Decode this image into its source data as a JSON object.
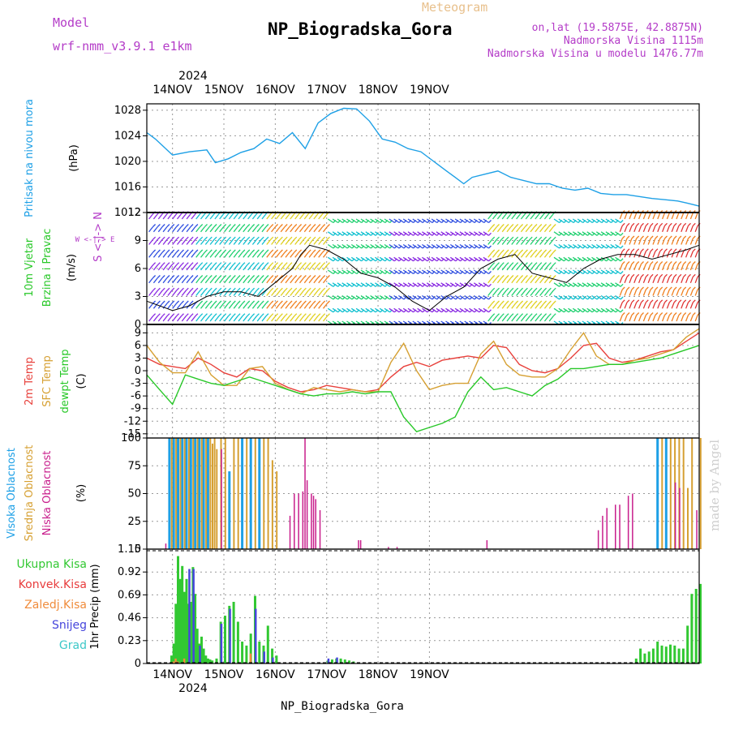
{
  "header": {
    "model_label": "Model",
    "model_value": "wrf-nmm_v3.9.1  e1km",
    "title": "NP_Biogradska_Gora",
    "subtitle": "Meteogram",
    "lonlat": "on,lat (19.5875E, 42.8875N)",
    "elevation": "Nadmorska Visina 1115m",
    "model_elevation": "Nadmorska Visina u modelu 1476.77m",
    "year_top": "2024",
    "year_bottom": "2024",
    "footer": "NP_Biogradska_Gora",
    "watermark": "made by Angel"
  },
  "colors": {
    "pressure": "#1ea0e6",
    "temp2m": "#e8413c",
    "sfc": "#d6a032",
    "dewpt": "#28c828",
    "high_cloud": "#1ea0e6",
    "mid_cloud": "#d6a032",
    "low_cloud": "#c81e8c",
    "rain_total": "#32c832",
    "rain_conv": "#e83c3c",
    "rain_frozen": "#f08c3c",
    "snow": "#4646dc",
    "graupel": "#3cc8c8",
    "vlabel_purple": "#b43cc8"
  },
  "panel_labels": {
    "pressure": {
      "lines": [
        {
          "text": "Pritisak na nivou mora",
          "color": "#1ea0e6"
        }
      ],
      "unit": "(hPa)"
    },
    "wind": {
      "lines": [
        {
          "text": "10m Vjetar",
          "color": "#28c828"
        },
        {
          "text": "Brzina i Pravac",
          "color": "#28c828"
        }
      ],
      "unit": "(m/s)",
      "compass": "W <-|-> E",
      "compass_v": "S <-|-> N"
    },
    "temp": {
      "lines": [
        {
          "text": "2m Temp",
          "color": "#e8413c"
        },
        {
          "text": "SFC Temp",
          "color": "#d6a032"
        },
        {
          "text": "dewpt Temp",
          "color": "#28c828"
        }
      ],
      "unit": "(C)"
    },
    "cloud": {
      "lines": [
        {
          "text": "Visoka Oblacnost",
          "color": "#1ea0e6"
        },
        {
          "text": "Srednja Oblacnost",
          "color": "#d6a032"
        },
        {
          "text": "Niska Oblacnost",
          "color": "#c81e8c"
        }
      ],
      "unit": "(%)"
    },
    "precip": {
      "unit": "1hr Precip (mm)",
      "legend": [
        {
          "text": "Ukupna Kisa",
          "color": "#32c832"
        },
        {
          "text": "Konvek.Kisa",
          "color": "#e83c3c"
        },
        {
          "text": "Zaledj.Kisa",
          "color": "#f08c3c"
        },
        {
          "text": "Snijeg",
          "color": "#4646dc"
        },
        {
          "text": "Grad",
          "color": "#3cc8c8"
        }
      ]
    }
  },
  "chart_data": [
    {
      "type": "line",
      "title": "Pritisak na nivou mora",
      "ylabel": "(hPa)",
      "ylim": [
        1012,
        1029
      ],
      "yticks": [
        "1012",
        "1016",
        "1020",
        "1024",
        "1028"
      ],
      "x_dates": [
        "14NOV",
        "15NOV",
        "16NOV",
        "17NOV",
        "18NOV",
        "19NOV"
      ],
      "x_hours": [
        -12,
        -8,
        0,
        8,
        16,
        20,
        26,
        32,
        38,
        44,
        50,
        56,
        62,
        68,
        74,
        80,
        86,
        92,
        98,
        104,
        110,
        116,
        120,
        124,
        128,
        132,
        136,
        140,
        146,
        152,
        158,
        164,
        170,
        176,
        182,
        188,
        194,
        200,
        206,
        212,
        218,
        224,
        230,
        236,
        240,
        246
      ],
      "series": [
        {
          "values": [
            1024.5,
            1023.5,
            1021.0,
            1021.5,
            1021.8,
            1019.8,
            1020.4,
            1021.4,
            1022.0,
            1023.5,
            1022.8,
            1024.5,
            1022.0,
            1026.0,
            1027.5,
            1028.3,
            1028.2,
            1026.3,
            1023.5,
            1023.0,
            1022.0,
            1021.5,
            1020.5,
            1019.5,
            1018.5,
            1017.5,
            1016.5,
            1017.5,
            1018.0,
            1018.5,
            1017.5,
            1017.0,
            1016.5,
            1016.5,
            1015.8,
            1015.5,
            1015.8,
            1015.0,
            1014.8,
            1014.8,
            1014.5,
            1014.2,
            1014.0,
            1013.8,
            1013.5,
            1013.0
          ]
        }
      ]
    },
    {
      "type": "line",
      "title": "10m Vjetar Brzina i Pravac",
      "ylabel": "(m/s)",
      "ylim": [
        0,
        12
      ],
      "yticks": [
        "0",
        "3",
        "6",
        "9",
        "12"
      ],
      "x_dates": [
        "14NOV",
        "15NOV",
        "16NOV",
        "17NOV",
        "18NOV",
        "19NOV"
      ],
      "x_hours": [
        -12,
        0,
        8,
        16,
        24,
        32,
        40,
        48,
        56,
        60,
        64,
        72,
        80,
        88,
        96,
        104,
        112,
        120,
        128,
        136,
        144,
        152,
        160,
        168,
        176,
        184,
        192,
        200,
        208,
        216,
        224,
        232,
        240,
        246
      ],
      "series": [
        {
          "values": [
            2.5,
            1.5,
            2.0,
            3.0,
            3.5,
            3.5,
            3.0,
            4.5,
            6.0,
            7.5,
            8.5,
            8.0,
            7.0,
            5.5,
            5.0,
            4.0,
            2.5,
            1.5,
            3.0,
            4.0,
            6.0,
            7.0,
            7.5,
            5.5,
            5.0,
            4.5,
            6.0,
            7.0,
            7.5,
            7.5,
            7.0,
            7.5,
            8.0,
            8.5
          ]
        }
      ]
    },
    {
      "type": "line",
      "title": "2m Temp / SFC Temp / dewpt Temp",
      "ylabel": "(C)",
      "ylim": [
        -16,
        11
      ],
      "yticks": [
        "-15",
        "-12",
        "-9",
        "-6",
        "-3",
        "0",
        "3",
        "6",
        "9"
      ],
      "x_dates": [
        "14NOV",
        "15NOV",
        "16NOV",
        "17NOV",
        "18NOV",
        "19NOV"
      ],
      "x_hours": [
        -12,
        -6,
        0,
        6,
        12,
        18,
        24,
        30,
        36,
        42,
        48,
        54,
        60,
        66,
        72,
        78,
        84,
        90,
        96,
        102,
        108,
        114,
        120,
        126,
        132,
        138,
        144,
        150,
        156,
        162,
        168,
        174,
        180,
        186,
        192,
        198,
        204,
        210,
        216,
        222,
        228,
        234,
        240,
        246
      ],
      "series": [
        {
          "name": "2m Temp",
          "values": [
            3.0,
            1.5,
            1.0,
            0.5,
            3.0,
            1.5,
            -0.5,
            -1.5,
            0.5,
            0.0,
            -2.5,
            -4.0,
            -5.0,
            -4.5,
            -3.5,
            -4.0,
            -4.5,
            -5.0,
            -4.5,
            -1.5,
            1.0,
            2.0,
            1.0,
            2.5,
            3.0,
            3.5,
            3.0,
            6.0,
            5.5,
            1.5,
            0.0,
            -0.5,
            0.5,
            3.0,
            6.0,
            6.5,
            3.0,
            2.0,
            2.5,
            3.5,
            4.5,
            5.0,
            7.0,
            9.0
          ]
        },
        {
          "name": "SFC Temp",
          "values": [
            6.0,
            2.0,
            -0.5,
            -0.5,
            4.5,
            -1.0,
            -3.5,
            -3.5,
            0.5,
            1.0,
            -3.0,
            -4.5,
            -5.5,
            -4.0,
            -4.5,
            -5.0,
            -4.5,
            -5.0,
            -5.0,
            2.0,
            6.5,
            0.0,
            -4.5,
            -3.5,
            -3.0,
            -3.0,
            4.0,
            7.0,
            1.5,
            -1.0,
            -1.5,
            -1.5,
            0.5,
            5.0,
            9.0,
            3.5,
            1.5,
            1.5,
            2.5,
            3.0,
            4.0,
            5.0,
            8.0,
            10.0
          ]
        },
        {
          "name": "dewpt Temp",
          "values": [
            -1.0,
            -4.5,
            -8.0,
            -1.0,
            -2.0,
            -3.0,
            -3.5,
            -2.5,
            -1.5,
            -2.5,
            -3.5,
            -4.5,
            -5.5,
            -6.0,
            -5.5,
            -5.5,
            -5.0,
            -5.5,
            -5.0,
            -5.0,
            -11.0,
            -14.5,
            -13.5,
            -12.5,
            -11.0,
            -5.0,
            -1.5,
            -4.5,
            -4.0,
            -5.0,
            -6.0,
            -3.5,
            -2.0,
            0.5,
            0.5,
            1.0,
            1.5,
            1.5,
            2.0,
            2.5,
            3.0,
            4.0,
            5.0,
            6.0
          ]
        }
      ]
    },
    {
      "type": "bar",
      "title": "Visoka / Srednja / Niska Oblacnost",
      "ylabel": "(%)",
      "ylim": [
        0,
        100
      ],
      "yticks": [
        "0",
        "25",
        "50",
        "75",
        "100"
      ],
      "x_dates": [
        "14NOV",
        "15NOV",
        "16NOV",
        "17NOV",
        "18NOV",
        "19NOV"
      ],
      "x_hours": [
        -4,
        -2,
        -1,
        0,
        1,
        2,
        3,
        4,
        5,
        6,
        7,
        8,
        9,
        10,
        11,
        12,
        13,
        14,
        15,
        16,
        17,
        18,
        19,
        20,
        22,
        24,
        26,
        28,
        30,
        32,
        34,
        36,
        38,
        40,
        42,
        44,
        46,
        48,
        54,
        56,
        58,
        60,
        61,
        62,
        64,
        65,
        66,
        68,
        70,
        72,
        86,
        87,
        100,
        104,
        146,
        159,
        174,
        198,
        200,
        202,
        204,
        206,
        208,
        210,
        212,
        213,
        214,
        216,
        218,
        220,
        222,
        224,
        226,
        228,
        230,
        232,
        234,
        236,
        238,
        240,
        242,
        244,
        246
      ],
      "series": [
        {
          "name": "Visoka Oblacnost",
          "values": [
            0,
            100,
            0,
            100,
            0,
            100,
            0,
            100,
            0,
            100,
            0,
            100,
            0,
            100,
            0,
            100,
            0,
            100,
            0,
            100,
            0,
            0,
            0,
            0,
            0,
            0,
            70,
            0,
            0,
            100,
            0,
            100,
            0,
            100,
            0,
            0,
            0,
            0,
            0,
            0,
            0,
            0,
            0,
            0,
            0,
            0,
            0,
            0,
            0,
            0,
            0,
            0,
            0,
            0,
            0,
            0,
            0,
            0,
            0,
            0,
            0,
            0,
            0,
            0,
            0,
            0,
            0,
            0,
            0,
            0,
            0,
            0,
            100,
            0,
            100,
            0,
            0,
            0,
            0,
            0,
            0,
            0,
            0
          ]
        },
        {
          "name": "Srednja Oblacnost",
          "values": [
            0,
            0,
            100,
            0,
            100,
            0,
            100,
            0,
            100,
            0,
            100,
            0,
            100,
            0,
            100,
            0,
            100,
            0,
            100,
            0,
            100,
            95,
            100,
            90,
            100,
            100,
            0,
            100,
            100,
            0,
            100,
            0,
            100,
            0,
            100,
            100,
            80,
            70,
            0,
            0,
            0,
            0,
            0,
            0,
            0,
            0,
            0,
            0,
            0,
            0,
            0,
            0,
            0,
            0,
            0,
            0,
            0,
            0,
            0,
            0,
            0,
            0,
            0,
            0,
            0,
            0,
            0,
            0,
            0,
            0,
            0,
            0,
            0,
            100,
            0,
            100,
            100,
            100,
            100,
            55,
            100,
            0,
            100
          ]
        },
        {
          "name": "Niska Oblacnost",
          "values": [
            5,
            0,
            0,
            0,
            0,
            0,
            0,
            0,
            0,
            0,
            0,
            0,
            0,
            0,
            0,
            0,
            0,
            0,
            0,
            0,
            0,
            0,
            0,
            0,
            90,
            0,
            0,
            0,
            0,
            0,
            0,
            0,
            0,
            0,
            0,
            0,
            0,
            0,
            30,
            50,
            50,
            52,
            100,
            62,
            50,
            48,
            45,
            35,
            0,
            0,
            8,
            8,
            2,
            2,
            8,
            0,
            0,
            17,
            30,
            37,
            0,
            40,
            40,
            0,
            48,
            0,
            50,
            0,
            0,
            0,
            0,
            0,
            0,
            0,
            0,
            0,
            60,
            55,
            0,
            0,
            0,
            35,
            0
          ]
        }
      ]
    },
    {
      "type": "bar",
      "title": "1hr Precip",
      "ylabel": "1hr Precip (mm)",
      "ylim": [
        0,
        1.15
      ],
      "yticks": [
        "0",
        "0.23",
        "0.46",
        "0.69",
        "0.92",
        "1.15"
      ],
      "x_dates": [
        "14NOV",
        "15NOV",
        "16NOV",
        "17NOV",
        "18NOV",
        "19NOV"
      ],
      "x_hours": [
        -1,
        0,
        1,
        2,
        3,
        4,
        5,
        6,
        7,
        8,
        9,
        10,
        11,
        12,
        13,
        14,
        15,
        16,
        17,
        18,
        20,
        22,
        24,
        26,
        28,
        30,
        32,
        34,
        36,
        38,
        40,
        42,
        44,
        46,
        48,
        72,
        74,
        76,
        78,
        80,
        82,
        84,
        216,
        218,
        220,
        222,
        224,
        226,
        228,
        230,
        232,
        234,
        236,
        238,
        240,
        242,
        244,
        246
      ],
      "series": [
        {
          "name": "Ukupna Kisa",
          "values": [
            0.08,
            0.2,
            0.6,
            1.08,
            0.85,
            0.98,
            0.72,
            0.85,
            0.6,
            0.62,
            0.97,
            0.7,
            0.35,
            0.2,
            0.27,
            0.15,
            0.08,
            0.05,
            0.04,
            0.03,
            0.05,
            0.42,
            0.48,
            0.58,
            0.62,
            0.42,
            0.22,
            0.18,
            0.3,
            0.68,
            0.22,
            0.18,
            0.38,
            0.15,
            0.08,
            0.03,
            0.04,
            0.05,
            0.05,
            0.04,
            0.03,
            0.02,
            0.05,
            0.15,
            0.1,
            0.12,
            0.15,
            0.22,
            0.18,
            0.17,
            0.19,
            0.18,
            0.15,
            0.15,
            0.38,
            0.7,
            0.75,
            0.8
          ]
        },
        {
          "name": "Snijeg",
          "values": [
            0,
            0,
            0,
            0,
            0,
            0,
            0,
            0,
            0.95,
            0,
            0.95,
            0,
            0,
            0.18,
            0,
            0,
            0,
            0,
            0,
            0,
            0,
            0.4,
            0,
            0.55,
            0,
            0,
            0,
            0,
            0,
            0.55,
            0,
            0.12,
            0,
            0.06,
            0,
            0.05,
            0,
            0.06,
            0,
            0,
            0,
            0,
            0,
            0,
            0,
            0,
            0,
            0,
            0,
            0,
            0,
            0,
            0,
            0,
            0,
            0,
            0,
            0
          ]
        },
        {
          "name": "Zaledj.Kisa",
          "values": [
            0,
            0.02,
            0.05,
            0.02,
            0,
            0,
            0.05,
            0,
            0,
            0,
            0,
            0,
            0,
            0,
            0,
            0,
            0,
            0,
            0,
            0,
            0,
            0,
            0,
            0,
            0,
            0,
            0,
            0,
            0.1,
            0,
            0,
            0,
            0,
            0,
            0,
            0,
            0,
            0,
            0,
            0,
            0,
            0,
            0,
            0,
            0,
            0,
            0,
            0,
            0,
            0,
            0,
            0,
            0,
            0,
            0,
            0,
            0,
            0
          ]
        }
      ]
    }
  ]
}
